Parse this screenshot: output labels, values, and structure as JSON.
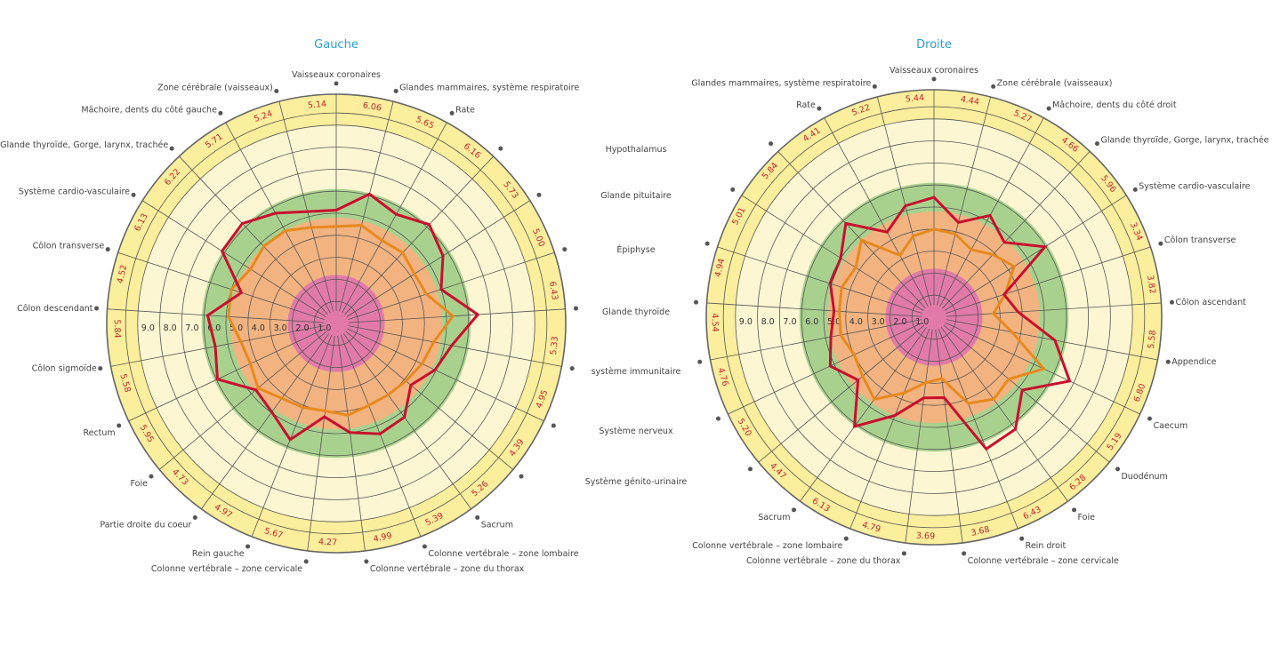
{
  "colors": {
    "zone_inner": "#e27aa9",
    "zone_low": "#f2b381",
    "zone_good": "#a9d18e",
    "zone_high": "#fcf6d3",
    "zone_outer": "#fbee9c",
    "grid": "#555555",
    "title": "#2a9fd6"
  },
  "shared_labels": [
    "Hypothalamus",
    "Glande pituitaire",
    "Épiphyse",
    "Glande thyroïde",
    "système immunitaire",
    "Système nerveux",
    "Système génito-urinaire"
  ],
  "chart_data": [
    {
      "type": "radar",
      "title": "Gauche",
      "rlim": [
        0,
        10
      ],
      "ticks": [
        "1.0",
        "2.0",
        "3.0",
        "4.0",
        "5.0",
        "6.0",
        "7.0",
        "8.0",
        "9.0"
      ],
      "zones": [
        2.2,
        4.8,
        6.1,
        9.0
      ],
      "axes": [
        "Vaisseaux coronaires",
        "Glandes mammaires, système respiratoire",
        "Rate",
        "",
        "",
        "",
        "",
        "",
        "",
        "",
        "Sacrum",
        "Colonne vertébrale – zone lombaire",
        "Colonne vertébrale – zone du thorax",
        "Colonne vertébrale – zone cervicale",
        "Rein gauche",
        "Partie droite du coeur",
        "Foie",
        "Rectum",
        "Côlon sigmoïde",
        "Côlon descendant",
        "Côlon transverse",
        "Système cardio-vasculaire",
        "Glande thyroïde, Gorge, larynx, trachée",
        "Mâchoire, dents du côté gauche",
        "Zone cérébrale (vaisseaux)"
      ],
      "series": [
        {
          "color": "#c8102e",
          "values": [
            "5.14",
            "6.06",
            "5.65",
            "6.16",
            "5.73",
            "5.00",
            "6.43",
            "5.33",
            "4.95",
            "4.39",
            "5.26",
            "5.39",
            "4.99",
            "4.27",
            "5.67",
            "4.97",
            "4.73",
            "5.95",
            "5.58",
            "5.84",
            "4.52",
            "6.13",
            "6.22",
            "5.71",
            "5.24"
          ]
        },
        {
          "color": "#e8891c",
          "values": [
            4.4,
            4.6,
            4.3,
            4.4,
            4.2,
            4.3,
            5.3,
            4.5,
            4.3,
            4.1,
            4.0,
            4.0,
            4.2,
            4.0,
            4.1,
            4.2,
            4.6,
            4.3,
            4.4,
            4.9,
            5.0,
            4.6,
            4.8,
            4.8,
            4.5
          ]
        }
      ]
    },
    {
      "type": "radar",
      "title": "Droite",
      "rlim": [
        0,
        10
      ],
      "ticks": [
        "1.0",
        "2.0",
        "3.0",
        "4.0",
        "5.0",
        "6.0",
        "7.0",
        "8.0",
        "9.0"
      ],
      "zones": [
        2.2,
        4.8,
        6.1,
        9.0
      ],
      "axes": [
        "Vaisseaux coronaires",
        "Zone cérébrale (vaisseaux)",
        "Mâchoire, dents du côté droit",
        "Glande thyroïde, Gorge, larynx, trachée",
        "Système cardio-vasculaire",
        "Côlon transverse",
        "Côlon ascendant",
        "Appendice",
        "Caecum",
        "Duodénum",
        "Foie",
        "Rein droit",
        "Colonne vertébrale – zone cervicale",
        "Colonne vertébrale – zone du thorax",
        "Colonne vertébrale – zone lombaire",
        "Sacrum",
        "",
        "",
        "",
        "",
        "",
        "",
        "",
        "Rate",
        "Glandes mammaires, système respiratoire"
      ],
      "series": [
        {
          "color": "#c8102e",
          "values": [
            "5.44",
            "4.44",
            "5.27",
            "4.66",
            "5.96",
            "3.34",
            "3.82",
            "5.58",
            "6.80",
            "5.19",
            "6.28",
            "6.43",
            "3.68",
            "3.69",
            "4.79",
            "6.13",
            "4.47",
            "5.20",
            "4.76",
            "4.54",
            "4.94",
            "5.01",
            "5.84",
            "4.41",
            "5.22"
          ]
        },
        {
          "color": "#e8891c",
          "values": [
            4.0,
            3.9,
            3.5,
            3.9,
            4.3,
            3.4,
            2.7,
            3.6,
            5.5,
            4.4,
            4.6,
            4.2,
            2.8,
            3.0,
            3.7,
            4.6,
            4.2,
            4.0,
            4.3,
            4.3,
            4.4,
            4.2,
            4.8,
            3.2,
            3.8
          ]
        }
      ]
    }
  ]
}
